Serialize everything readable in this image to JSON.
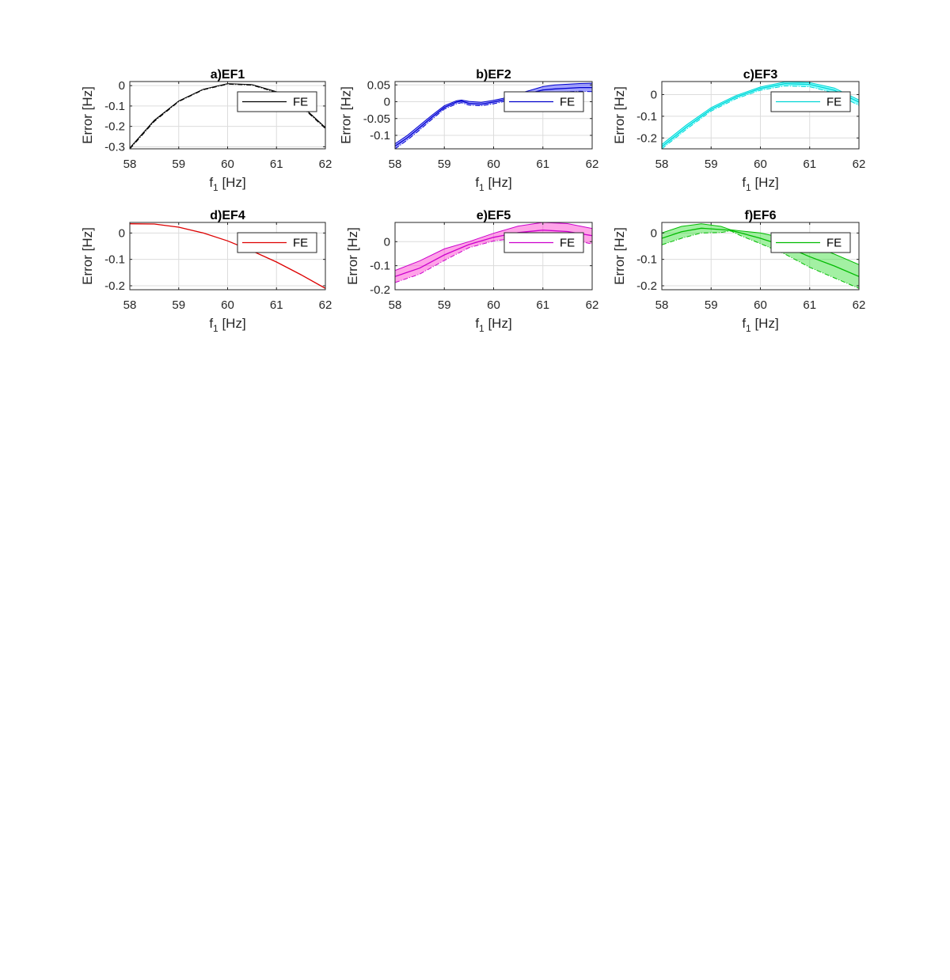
{
  "chart_data": [
    {
      "type": "area",
      "title": "a)EF1",
      "xlabel": "f",
      "xlabel_sub": "1",
      "xlabel_unit": " [Hz]",
      "ylabel": "Error [Hz]",
      "xlim": [
        58,
        62
      ],
      "ylim": [
        -0.31,
        0.02
      ],
      "xticks": [
        "58",
        "59",
        "60",
        "61",
        "62"
      ],
      "yticks": [
        {
          "v": -0.3,
          "label": "-0.3"
        },
        {
          "v": -0.2,
          "label": "-0.2"
        },
        {
          "v": -0.1,
          "label": "-0.1"
        },
        {
          "v": 0,
          "label": "0"
        }
      ],
      "legend": {
        "label": "FE",
        "position": "top-right"
      },
      "color": "#000000",
      "fill": "#000000",
      "grid": true,
      "x": [
        58,
        58.5,
        59,
        59.5,
        60,
        60.5,
        61,
        61.5,
        62
      ],
      "series": [
        {
          "values": [
            -0.305,
            -0.17,
            -0.075,
            -0.018,
            0.01,
            0.005,
            -0.03,
            -0.095,
            -0.205
          ]
        },
        {
          "values": [
            -0.31,
            -0.175,
            -0.078,
            -0.02,
            0.008,
            0.003,
            -0.033,
            -0.1,
            -0.21
          ]
        }
      ]
    },
    {
      "type": "area",
      "title": "b)EF2",
      "xlabel": "f",
      "xlabel_sub": "1",
      "xlabel_unit": " [Hz]",
      "ylabel": "Error [Hz]",
      "xlim": [
        58,
        62
      ],
      "ylim": [
        -0.14,
        0.06
      ],
      "xticks": [
        "58",
        "59",
        "60",
        "61",
        "62"
      ],
      "yticks": [
        {
          "v": -0.1,
          "label": "-0.1"
        },
        {
          "v": -0.05,
          "label": "-0.05"
        },
        {
          "v": 0,
          "label": "0"
        },
        {
          "v": 0.05,
          "label": "0.05"
        }
      ],
      "legend": {
        "label": "FE",
        "position": "top-right"
      },
      "color": "#0000cc",
      "fill": "#3333ff",
      "grid": true,
      "x": [
        58,
        58.25,
        58.5,
        58.75,
        59,
        59.25,
        59.35,
        59.5,
        59.75,
        60,
        60.25,
        60.5,
        60.75,
        61,
        61.25,
        61.5,
        61.75,
        62
      ],
      "series": [
        {
          "values": [
            -0.125,
            -0.1,
            -0.07,
            -0.04,
            -0.012,
            0.003,
            0.005,
            0.001,
            -0.002,
            0.004,
            0.012,
            0.024,
            0.034,
            0.045,
            0.05,
            0.052,
            0.054,
            0.055
          ]
        },
        {
          "values": [
            -0.132,
            -0.107,
            -0.077,
            -0.046,
            -0.017,
            -0.001,
            0.002,
            -0.005,
            -0.007,
            -0.001,
            0.007,
            0.017,
            0.026,
            0.035,
            0.038,
            0.04,
            0.042,
            0.042
          ]
        },
        {
          "values": [
            -0.14,
            -0.114,
            -0.084,
            -0.052,
            -0.022,
            -0.006,
            -0.003,
            -0.01,
            -0.012,
            -0.006,
            0.002,
            0.01,
            0.018,
            0.025,
            0.028,
            0.03,
            0.031,
            0.03
          ]
        }
      ]
    },
    {
      "type": "area",
      "title": "c)EF3",
      "xlabel": "f",
      "xlabel_sub": "1",
      "xlabel_unit": " [Hz]",
      "ylabel": "Error [Hz]",
      "xlim": [
        58,
        62
      ],
      "ylim": [
        -0.25,
        0.06
      ],
      "xticks": [
        "58",
        "59",
        "60",
        "61",
        "62"
      ],
      "yticks": [
        {
          "v": -0.2,
          "label": "-0.2"
        },
        {
          "v": -0.1,
          "label": "-0.1"
        },
        {
          "v": 0,
          "label": "0"
        }
      ],
      "legend": {
        "label": "FE",
        "position": "top-right"
      },
      "color": "#00d4d4",
      "fill": "#00ffff",
      "grid": true,
      "x": [
        58,
        58.5,
        59,
        59.5,
        60,
        60.5,
        61,
        61.5,
        62
      ],
      "series": [
        {
          "values": [
            -0.23,
            -0.14,
            -0.06,
            -0.005,
            0.035,
            0.058,
            0.055,
            0.03,
            -0.025
          ]
        },
        {
          "values": [
            -0.24,
            -0.15,
            -0.068,
            -0.012,
            0.028,
            0.05,
            0.047,
            0.02,
            -0.035
          ]
        },
        {
          "values": [
            -0.25,
            -0.16,
            -0.076,
            -0.02,
            0.02,
            0.04,
            0.036,
            0.008,
            -0.05
          ]
        }
      ]
    },
    {
      "type": "area",
      "title": "d)EF4",
      "xlabel": "f",
      "xlabel_sub": "1",
      "xlabel_unit": " [Hz]",
      "ylabel": "Error [Hz]",
      "xlim": [
        58,
        62
      ],
      "ylim": [
        -0.215,
        0.04
      ],
      "xticks": [
        "58",
        "59",
        "60",
        "61",
        "62"
      ],
      "yticks": [
        {
          "v": -0.2,
          "label": "-0.2"
        },
        {
          "v": -0.1,
          "label": "-0.1"
        },
        {
          "v": 0,
          "label": "0"
        }
      ],
      "legend": {
        "label": "FE",
        "position": "top-right"
      },
      "color": "#dd0000",
      "fill": "#ff0000",
      "grid": true,
      "x": [
        58,
        58.5,
        59,
        59.5,
        60,
        60.5,
        61,
        61.5,
        62
      ],
      "series": [
        {
          "values": [
            0.035,
            0.034,
            0.022,
            0.0,
            -0.03,
            -0.068,
            -0.11,
            -0.158,
            -0.21
          ]
        }
      ]
    },
    {
      "type": "area",
      "title": "e)EF5",
      "xlabel": "f",
      "xlabel_sub": "1",
      "xlabel_unit": " [Hz]",
      "ylabel": "Error [Hz]",
      "xlim": [
        58,
        62
      ],
      "ylim": [
        -0.2,
        0.08
      ],
      "xticks": [
        "58",
        "59",
        "60",
        "61",
        "62"
      ],
      "yticks": [
        {
          "v": -0.2,
          "label": "-0.2"
        },
        {
          "v": -0.1,
          "label": "-0.1"
        },
        {
          "v": 0,
          "label": "0"
        }
      ],
      "legend": {
        "label": "FE",
        "position": "top-right"
      },
      "color": "#cc00cc",
      "fill": "#ff33cc",
      "grid": true,
      "x": [
        58,
        58.5,
        59,
        59.5,
        60,
        60.5,
        61,
        61.5,
        62
      ],
      "series": [
        {
          "values": [
            -0.12,
            -0.08,
            -0.03,
            0.0,
            0.035,
            0.065,
            0.08,
            0.075,
            0.055
          ]
        },
        {
          "values": [
            -0.145,
            -0.11,
            -0.055,
            -0.012,
            0.018,
            0.038,
            0.048,
            0.042,
            0.025
          ]
        },
        {
          "values": [
            -0.17,
            -0.135,
            -0.078,
            -0.025,
            0.003,
            0.015,
            0.02,
            0.012,
            -0.01
          ]
        }
      ]
    },
    {
      "type": "area",
      "title": "f)EF6",
      "xlabel": "f",
      "xlabel_sub": "1",
      "xlabel_unit": " [Hz]",
      "ylabel": "Error [Hz]",
      "xlim": [
        58,
        62
      ],
      "ylim": [
        -0.215,
        0.04
      ],
      "xticks": [
        "58",
        "59",
        "60",
        "61",
        "62"
      ],
      "yticks": [
        {
          "v": -0.2,
          "label": "-0.2"
        },
        {
          "v": -0.1,
          "label": "-0.1"
        },
        {
          "v": 0,
          "label": "0"
        }
      ],
      "legend": {
        "label": "FE",
        "position": "top-right"
      },
      "color": "#00bb00",
      "fill": "#33dd33",
      "grid": true,
      "x": [
        58,
        58.4,
        58.8,
        59.2,
        59.4,
        59.6,
        60,
        60.5,
        61,
        61.5,
        62
      ],
      "series": [
        {
          "values": [
            0.0,
            0.025,
            0.035,
            0.025,
            0.012,
            0.008,
            0.0,
            -0.02,
            -0.045,
            -0.08,
            -0.12
          ]
        },
        {
          "values": [
            -0.02,
            0.005,
            0.018,
            0.013,
            0.01,
            0.0,
            -0.02,
            -0.05,
            -0.09,
            -0.125,
            -0.165
          ]
        },
        {
          "values": [
            -0.045,
            -0.02,
            0.0,
            0.002,
            0.008,
            -0.01,
            -0.04,
            -0.08,
            -0.13,
            -0.17,
            -0.21
          ]
        }
      ]
    }
  ]
}
